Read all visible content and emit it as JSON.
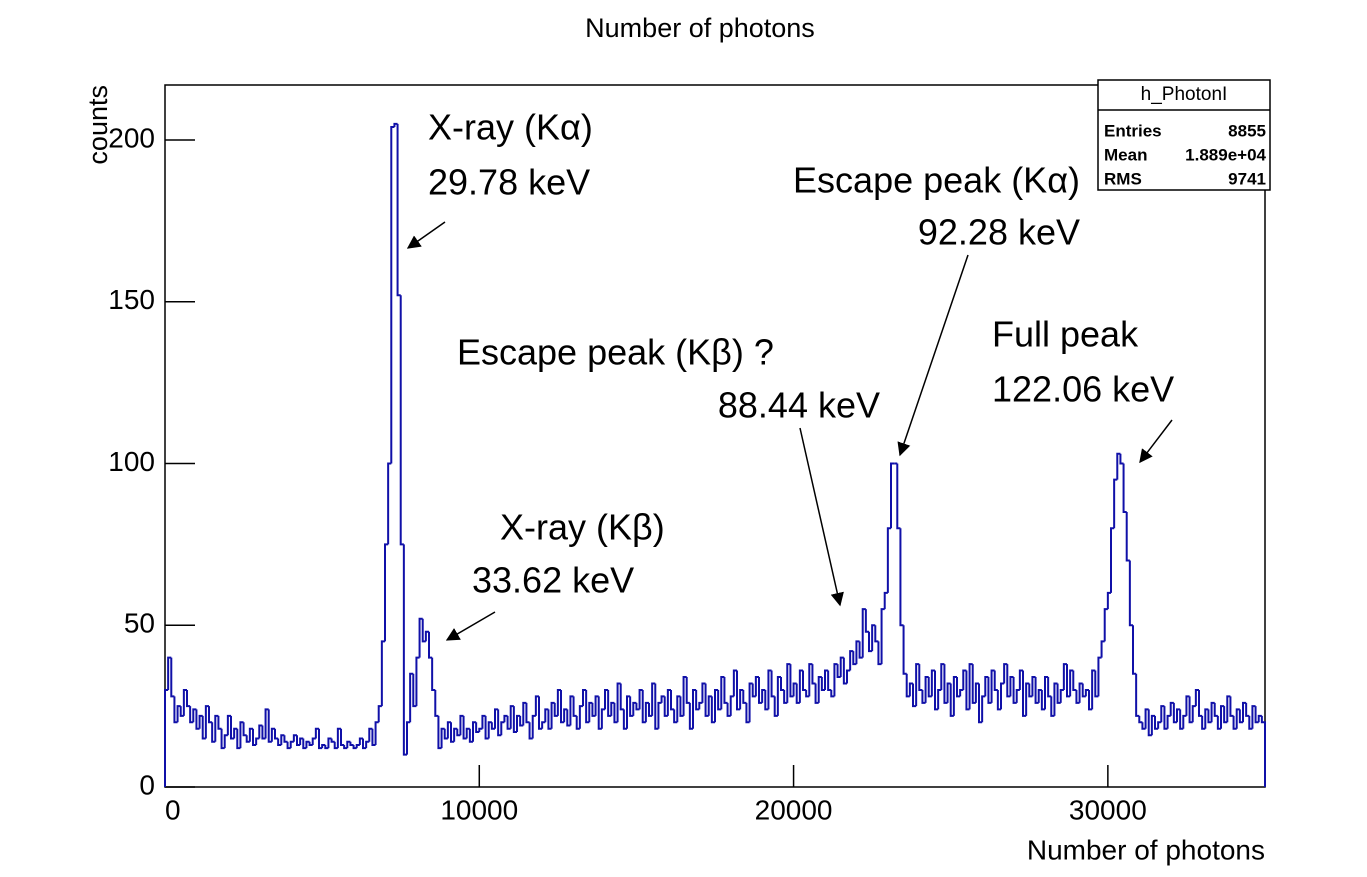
{
  "chart_data": {
    "type": "histogram",
    "title": "Number of photons",
    "xlabel": "Number of photons",
    "ylabel": "counts",
    "color": "#1010a8",
    "xlim": [
      0,
      35000
    ],
    "ylim": [
      0,
      217
    ],
    "xticks": [
      0,
      10000,
      20000,
      30000
    ],
    "yticks": [
      0,
      50,
      100,
      150,
      200
    ],
    "bins": [
      0,
      100,
      200,
      300,
      400,
      500,
      600,
      700,
      800,
      900,
      1000,
      1100,
      1200,
      1300,
      1400,
      1500,
      1600,
      1700,
      1800,
      1900,
      2000,
      2100,
      2200,
      2300,
      2400,
      2500,
      2600,
      2700,
      2800,
      2900,
      3000,
      3100,
      3200,
      3300,
      3400,
      3500,
      3600,
      3700,
      3800,
      3900,
      4000,
      4100,
      4200,
      4300,
      4400,
      4500,
      4600,
      4700,
      4800,
      4900,
      5000,
      5100,
      5200,
      5300,
      5400,
      5500,
      5600,
      5700,
      5800,
      5900,
      6000,
      6100,
      6200,
      6300,
      6400,
      6500,
      6600,
      6700,
      6800,
      6900,
      7000,
      7100,
      7200,
      7300,
      7400,
      7500,
      7600,
      7700,
      7800,
      7900,
      8000,
      8100,
      8200,
      8300,
      8400,
      8500,
      8600,
      8700,
      8800,
      8900,
      9000,
      9100,
      9200,
      9300,
      9400,
      9500,
      9600,
      9700,
      9800,
      9900,
      10000,
      10100,
      10200,
      10300,
      10400,
      10500,
      10600,
      10700,
      10800,
      10900,
      11000,
      11100,
      11200,
      11300,
      11400,
      11500,
      11600,
      11700,
      11800,
      11900,
      12000,
      12100,
      12200,
      12300,
      12400,
      12500,
      12600,
      12700,
      12800,
      12900,
      13000,
      13100,
      13200,
      13300,
      13400,
      13500,
      13600,
      13700,
      13800,
      13900,
      14000,
      14100,
      14200,
      14300,
      14400,
      14500,
      14600,
      14700,
      14800,
      14900,
      15000,
      15100,
      15200,
      15300,
      15400,
      15500,
      15600,
      15700,
      15800,
      15900,
      16000,
      16100,
      16200,
      16300,
      16400,
      16500,
      16600,
      16700,
      16800,
      16900,
      17000,
      17100,
      17200,
      17300,
      17400,
      17500,
      17600,
      17700,
      17800,
      17900,
      18000,
      18100,
      18200,
      18300,
      18400,
      18500,
      18600,
      18700,
      18800,
      18900,
      19000,
      19100,
      19200,
      19300,
      19400,
      19500,
      19600,
      19700,
      19800,
      19900,
      20000,
      20100,
      20200,
      20300,
      20400,
      20500,
      20600,
      20700,
      20800,
      20900,
      21000,
      21100,
      21200,
      21300,
      21400,
      21500,
      21600,
      21700,
      21800,
      21900,
      22000,
      22100,
      22200,
      22300,
      22400,
      22500,
      22600,
      22700,
      22800,
      22900,
      23000,
      23100,
      23200,
      23300,
      23400,
      23500,
      23600,
      23700,
      23800,
      23900,
      24000,
      24100,
      24200,
      24300,
      24400,
      24500,
      24600,
      24700,
      24800,
      24900,
      25000,
      25100,
      25200,
      25300,
      25400,
      25500,
      25600,
      25700,
      25800,
      25900,
      26000,
      26100,
      26200,
      26300,
      26400,
      26500,
      26600,
      26700,
      26800,
      26900,
      27000,
      27100,
      27200,
      27300,
      27400,
      27500,
      27600,
      27700,
      27800,
      27900,
      28000,
      28100,
      28200,
      28300,
      28400,
      28500,
      28600,
      28700,
      28800,
      28900,
      29000,
      29100,
      29200,
      29300,
      29400,
      29500,
      29600,
      29700,
      29800,
      29900,
      30000,
      30100,
      30200,
      30300,
      30400,
      30500,
      30600,
      30700,
      30800,
      30900,
      31000,
      31100,
      31200,
      31300,
      31400,
      31500,
      31600,
      31700,
      31800,
      31900,
      32000,
      32100,
      32200,
      32300,
      32400,
      32500,
      32600,
      32700,
      32800,
      32900,
      33000,
      33100,
      33200,
      33300,
      33400,
      33500,
      33600,
      33700,
      33800,
      33900,
      34000,
      34100,
      34200,
      34300,
      34400,
      34500,
      34600,
      34700,
      34800,
      34900,
      35000
    ],
    "values": [
      30,
      40,
      28,
      20,
      25,
      22,
      30,
      25,
      20,
      24,
      18,
      22,
      15,
      25,
      20,
      14,
      22,
      18,
      12,
      16,
      22,
      15,
      18,
      12,
      20,
      16,
      14,
      18,
      13,
      15,
      19,
      15,
      24,
      14,
      18,
      15,
      13,
      16,
      14,
      12,
      14,
      16,
      13,
      15,
      12,
      14,
      13,
      15,
      18,
      12,
      13,
      12,
      15,
      14,
      12,
      18,
      13,
      12,
      14,
      13,
      12,
      13,
      15,
      12,
      14,
      18,
      13,
      20,
      25,
      45,
      75,
      100,
      204,
      205,
      152,
      75,
      10,
      20,
      35,
      25,
      40,
      52,
      45,
      48,
      40,
      30,
      22,
      12,
      18,
      15,
      20,
      14,
      18,
      16,
      22,
      15,
      18,
      14,
      20,
      17,
      18,
      22,
      15,
      20,
      18,
      24,
      16,
      20,
      22,
      18,
      25,
      17,
      22,
      19,
      26,
      20,
      15,
      22,
      28,
      18,
      20,
      24,
      18,
      26,
      22,
      30,
      20,
      24,
      19,
      28,
      22,
      18,
      25,
      30,
      20,
      26,
      22,
      28,
      18,
      24,
      30,
      22,
      26,
      20,
      32,
      24,
      18,
      28,
      22,
      26,
      24,
      30,
      20,
      26,
      22,
      32,
      18,
      26,
      28,
      22,
      30,
      24,
      20,
      28,
      22,
      34,
      26,
      18,
      30,
      24,
      26,
      32,
      22,
      28,
      20,
      30,
      24,
      34,
      26,
      22,
      28,
      36,
      24,
      30,
      26,
      20,
      32,
      28,
      34,
      26,
      30,
      24,
      36,
      28,
      22,
      34,
      30,
      26,
      38,
      28,
      32,
      26,
      36,
      30,
      28,
      38,
      32,
      26,
      34,
      30,
      36,
      30,
      28,
      38,
      34,
      40,
      32,
      36,
      42,
      38,
      45,
      40,
      55,
      48,
      42,
      50,
      45,
      38,
      55,
      60,
      80,
      100,
      100,
      80,
      50,
      35,
      28,
      32,
      25,
      38,
      30,
      26,
      34,
      28,
      36,
      24,
      30,
      38,
      26,
      32,
      22,
      34,
      28,
      30,
      36,
      24,
      38,
      26,
      32,
      20,
      28,
      34,
      26,
      36,
      30,
      24,
      32,
      38,
      28,
      34,
      26,
      30,
      36,
      22,
      32,
      28,
      34,
      26,
      30,
      24,
      34,
      28,
      22,
      32,
      26,
      30,
      38,
      28,
      36,
      30,
      26,
      32,
      28,
      30,
      24,
      36,
      28,
      40,
      45,
      55,
      60,
      80,
      95,
      103,
      100,
      85,
      70,
      50,
      35,
      22,
      20,
      18,
      24,
      16,
      22,
      18,
      20,
      25,
      18,
      22,
      26,
      20,
      24,
      18,
      22,
      28,
      20,
      25,
      30,
      22,
      18,
      24,
      20,
      26,
      22,
      18,
      25,
      20,
      28,
      22,
      18,
      24,
      20,
      26,
      22,
      18,
      25,
      20,
      22,
      20
    ],
    "annotations": [
      [
        "X-ray (Kα)",
        "29.78 keV"
      ],
      [
        "Escape peak (Kα)",
        "92.28 keV"
      ],
      [
        "Escape peak (Kβ) ?",
        "88.44 keV"
      ],
      [
        "Full peak",
        "122.06 keV"
      ],
      [
        "X-ray (Kβ)",
        "33.62 keV"
      ]
    ],
    "stats": {
      "title": "h_PhotonI",
      "rows": [
        [
          "Entries",
          8855
        ],
        [
          "Mean",
          "1.889e+04"
        ],
        [
          "RMS",
          9741
        ]
      ]
    }
  }
}
